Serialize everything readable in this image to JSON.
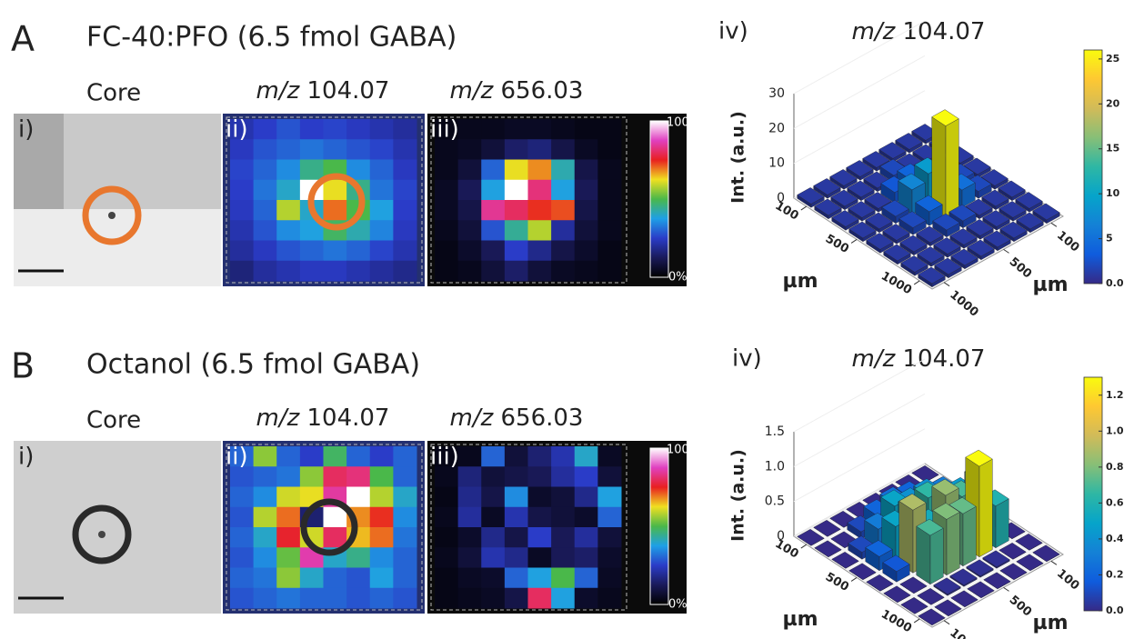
{
  "figure": {
    "colormap_heat": [
      "#000000",
      "#1a1a5a",
      "#2a3cc8",
      "#1ea0e6",
      "#4ab84a",
      "#f0e020",
      "#e82020",
      "#e040c0",
      "#ffffff"
    ],
    "colormap_bars": [
      "#352a87",
      "#0f5cdd",
      "#1481d6",
      "#06a4ca",
      "#2eb7a4",
      "#87bf77",
      "#d1bb59",
      "#fec832",
      "#f9fb0e"
    ],
    "panels": [
      {
        "label": "A",
        "title": "FC-40:PFO (6.5 fmol GABA)",
        "core": "Core",
        "i": "i)",
        "ii": "ii)",
        "iii": "iii)",
        "mz_prefix": "m/z",
        "mz_ii": "104.07",
        "mz_iii": "656.03",
        "heat_max": "100%",
        "heat_min": "0%",
        "circle_color": "#e8772e",
        "heat_lim": [
          0,
          100
        ],
        "heat_ii": [
          [
            22,
            25,
            28,
            25,
            26,
            24,
            22,
            20
          ],
          [
            24,
            28,
            30,
            32,
            30,
            28,
            26,
            22
          ],
          [
            26,
            30,
            35,
            45,
            50,
            35,
            30,
            24
          ],
          [
            25,
            32,
            40,
            100,
            62,
            45,
            32,
            26
          ],
          [
            24,
            30,
            58,
            40,
            70,
            50,
            38,
            25
          ],
          [
            22,
            28,
            35,
            38,
            48,
            42,
            34,
            24
          ],
          [
            20,
            24,
            28,
            30,
            32,
            30,
            26,
            22
          ],
          [
            16,
            20,
            22,
            24,
            24,
            22,
            20,
            18
          ]
        ],
        "heat_iii": [
          [
            3,
            4,
            4,
            5,
            5,
            4,
            3,
            3
          ],
          [
            4,
            5,
            8,
            14,
            16,
            10,
            5,
            3
          ],
          [
            4,
            8,
            30,
            62,
            68,
            42,
            10,
            4
          ],
          [
            5,
            12,
            38,
            100,
            82,
            38,
            12,
            4
          ],
          [
            5,
            10,
            84,
            80,
            74,
            72,
            10,
            4
          ],
          [
            4,
            8,
            28,
            44,
            58,
            20,
            8,
            4
          ],
          [
            3,
            6,
            12,
            25,
            18,
            10,
            6,
            3
          ],
          [
            3,
            4,
            8,
            14,
            8,
            5,
            4,
            3
          ]
        ],
        "chart": {
          "type": "bar3d",
          "label": "iv)",
          "title_prefix": "m/z",
          "title_value": "104.07",
          "zlabel": "Int. (a.u.)",
          "xlabel": "µm",
          "ylabel": "µm",
          "zlim": [
            0,
            30
          ],
          "zticks": [
            0,
            10,
            20,
            30
          ],
          "xlim": [
            0,
            1100
          ],
          "xticks": [
            100,
            500,
            1000
          ],
          "yticks": [
            100,
            500,
            1000
          ],
          "clim": [
            0,
            26
          ],
          "cticks": [
            {
              "value": 0,
              "label": "0.0"
            },
            5,
            10,
            15,
            20,
            25
          ],
          "bars": [
            [
              1,
              1,
              1,
              1,
              1,
              1,
              1,
              1
            ],
            [
              1,
              1,
              1,
              1,
              1,
              1,
              1,
              1
            ],
            [
              1,
              1,
              1,
              2,
              2,
              1,
              1,
              1
            ],
            [
              1,
              1,
              2,
              4,
              26,
              5,
              2,
              1
            ],
            [
              1,
              1,
              2,
              7,
              9,
              6,
              2,
              1
            ],
            [
              1,
              1,
              1,
              3,
              4,
              3,
              1,
              1
            ],
            [
              1,
              1,
              1,
              1,
              2,
              1,
              1,
              1
            ],
            [
              1,
              1,
              1,
              1,
              1,
              1,
              1,
              1
            ]
          ]
        }
      },
      {
        "label": "B",
        "title": "Octanol (6.5 fmol GABA)",
        "core": "Core",
        "i": "i)",
        "ii": "ii)",
        "iii": "iii)",
        "mz_prefix": "m/z",
        "mz_ii": "104.07",
        "mz_iii": "656.03",
        "heat_max": "100%",
        "heat_min": "0%",
        "circle_color": "#2a2a2a",
        "heat_lim": [
          0,
          100
        ],
        "heat_ii": [
          [
            30,
            55,
            30,
            25,
            48,
            30,
            25,
            30
          ],
          [
            28,
            30,
            32,
            55,
            80,
            82,
            50,
            30
          ],
          [
            30,
            35,
            60,
            62,
            85,
            100,
            58,
            40
          ],
          [
            28,
            58,
            70,
            15,
            100,
            68,
            74,
            35
          ],
          [
            30,
            40,
            76,
            60,
            80,
            65,
            70,
            32
          ],
          [
            28,
            35,
            52,
            86,
            40,
            45,
            35,
            30
          ],
          [
            30,
            32,
            55,
            40,
            30,
            28,
            38,
            30
          ],
          [
            28,
            30,
            32,
            30,
            30,
            28,
            30,
            28
          ]
        ],
        "heat_iii": [
          [
            3,
            4,
            30,
            8,
            15,
            22,
            40,
            5
          ],
          [
            4,
            16,
            8,
            10,
            12,
            20,
            25,
            8
          ],
          [
            3,
            18,
            10,
            35,
            6,
            8,
            18,
            38
          ],
          [
            4,
            20,
            5,
            22,
            10,
            8,
            6,
            30
          ],
          [
            3,
            6,
            18,
            10,
            25,
            12,
            20,
            8
          ],
          [
            4,
            8,
            22,
            18,
            5,
            12,
            14,
            6
          ],
          [
            3,
            5,
            6,
            30,
            38,
            50,
            30,
            5
          ],
          [
            3,
            4,
            5,
            10,
            80,
            38,
            6,
            4
          ]
        ],
        "chart": {
          "type": "bar3d",
          "label": "iv)",
          "title_prefix": "m/z",
          "title_value": "104.07",
          "zlabel": "Int. (a.u.)",
          "xlabel": "µm",
          "ylabel": "µm",
          "zlim": [
            0,
            1.5
          ],
          "zticks": [
            0,
            {
              "value": 0.5,
              "label": "0.5"
            },
            {
              "value": 1,
              "label": "1.0"
            },
            {
              "value": 1.5,
              "label": "1.5"
            }
          ],
          "xlim": [
            0,
            1100
          ],
          "xticks": [
            100,
            500,
            1000
          ],
          "yticks": [
            100,
            500,
            1000
          ],
          "clim": [
            0,
            1.3
          ],
          "cticks": [
            {
              "value": 0,
              "label": "0.0"
            },
            {
              "value": 0.2,
              "label": "0.2"
            },
            {
              "value": 0.4,
              "label": "0.4"
            },
            {
              "value": 0.6,
              "label": "0.6"
            },
            {
              "value": 0.8,
              "label": "0.8"
            },
            {
              "value": 1,
              "label": "1.0"
            },
            {
              "value": 1.2,
              "label": "1.2"
            }
          ],
          "bars": [
            [
              0,
              0,
              0,
              0,
              0,
              0,
              0,
              0
            ],
            [
              0,
              0,
              0.02,
              0.02,
              0.02,
              0.02,
              0,
              0
            ],
            [
              0,
              0,
              0.7,
              0.8,
              0.75,
              1.3,
              0.6,
              0
            ],
            [
              0,
              0.15,
              0.9,
              0.55,
              0.85,
              0.7,
              0.8,
              0
            ],
            [
              0,
              0.2,
              0.5,
              0.6,
              0.65,
              0.5,
              0.45,
              0
            ],
            [
              0,
              0.1,
              0.3,
              0.5,
              0.4,
              0.4,
              0.3,
              0
            ],
            [
              0,
              0,
              0.1,
              0.2,
              0.25,
              0.2,
              0,
              0
            ],
            [
              0,
              0,
              0,
              0,
              0,
              0,
              0,
              0
            ]
          ]
        }
      }
    ]
  }
}
